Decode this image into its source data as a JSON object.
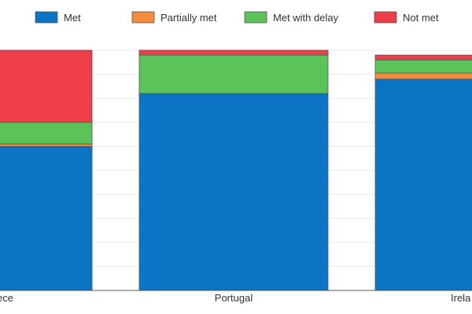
{
  "chart_data": {
    "type": "bar",
    "stacked": true,
    "categories": [
      "Greece",
      "Portugal",
      "Ireland"
    ],
    "visible_category_labels": [
      "ece",
      "Portugal",
      "Irela"
    ],
    "series": [
      {
        "name": "Met",
        "color": "#0b74c4",
        "values": [
          60,
          82,
          88
        ]
      },
      {
        "name": "Partially met",
        "color": "#f58b3c",
        "values": [
          1,
          0,
          2.5
        ]
      },
      {
        "name": "Met with delay",
        "color": "#5cc35a",
        "values": [
          9,
          16,
          5.5
        ]
      },
      {
        "name": "Not met",
        "color": "#ee3e49",
        "values": [
          30,
          2,
          2
        ]
      }
    ],
    "ylim": [
      0,
      100
    ],
    "grid": true,
    "legend": "top",
    "title": "",
    "xlabel": "",
    "ylabel": ""
  }
}
